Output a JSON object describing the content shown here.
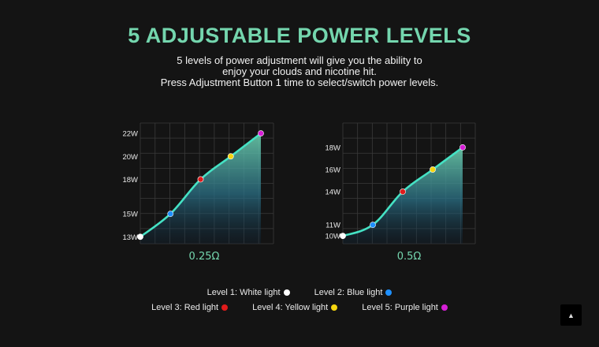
{
  "header": {
    "title": "5 ADJUSTABLE POWER LEVELS",
    "lines": [
      "5 levels of power adjustment will give you the ability to",
      "enjoy your clouds and nicotine hit.",
      "Press Adjustment Button 1 time to select/switch power levels."
    ]
  },
  "colors": {
    "accent": "#74d6ae",
    "curve": "#45e2c4",
    "level_1": "#ffffff",
    "level_2": "#1e90ff",
    "level_3": "#e01b1b",
    "level_4": "#f5d50f",
    "level_5": "#d61fd6"
  },
  "legend": {
    "row1": [
      {
        "label": "Level 1: White light",
        "color": "#ffffff"
      },
      {
        "label": "Level 2: Blue light",
        "color": "#1e90ff"
      }
    ],
    "row2": [
      {
        "label": "Level 3: Red light",
        "color": "#e01b1b"
      },
      {
        "label": "Level 4: Yellow light",
        "color": "#f5d50f"
      },
      {
        "label": "Level 5: Purple light",
        "color": "#d61fd6"
      }
    ]
  },
  "scroll_top": {
    "icon": "caret-up-icon",
    "glyph": "▲"
  },
  "chart_data": [
    {
      "type": "line",
      "xlabel": "0.25Ω",
      "ylabel": "",
      "grid": true,
      "ylim": [
        12.4,
        22.9
      ],
      "y_ticks": [
        13,
        15,
        18,
        20,
        22
      ],
      "y_tick_labels": [
        "13W",
        "15W",
        "18W",
        "20W",
        "22W"
      ],
      "series": [
        {
          "x": [
            1,
            2,
            3,
            4,
            5
          ],
          "values": [
            13,
            15,
            18,
            20,
            22
          ]
        }
      ],
      "point_colors": [
        "#ffffff",
        "#1e90ff",
        "#e01b1b",
        "#f5d50f",
        "#d61fd6"
      ]
    },
    {
      "type": "line",
      "xlabel": "0.5Ω",
      "ylabel": "",
      "grid": true,
      "ylim": [
        9.3,
        20.2
      ],
      "y_ticks": [
        10,
        11,
        14,
        16,
        18
      ],
      "y_tick_labels": [
        "10W",
        "11W",
        "14W",
        "16W",
        "18W"
      ],
      "series": [
        {
          "x": [
            1,
            2,
            3,
            4,
            5
          ],
          "values": [
            10,
            11,
            14,
            16,
            18
          ]
        }
      ],
      "point_colors": [
        "#ffffff",
        "#1e90ff",
        "#e01b1b",
        "#f5d50f",
        "#d61fd6"
      ]
    }
  ]
}
